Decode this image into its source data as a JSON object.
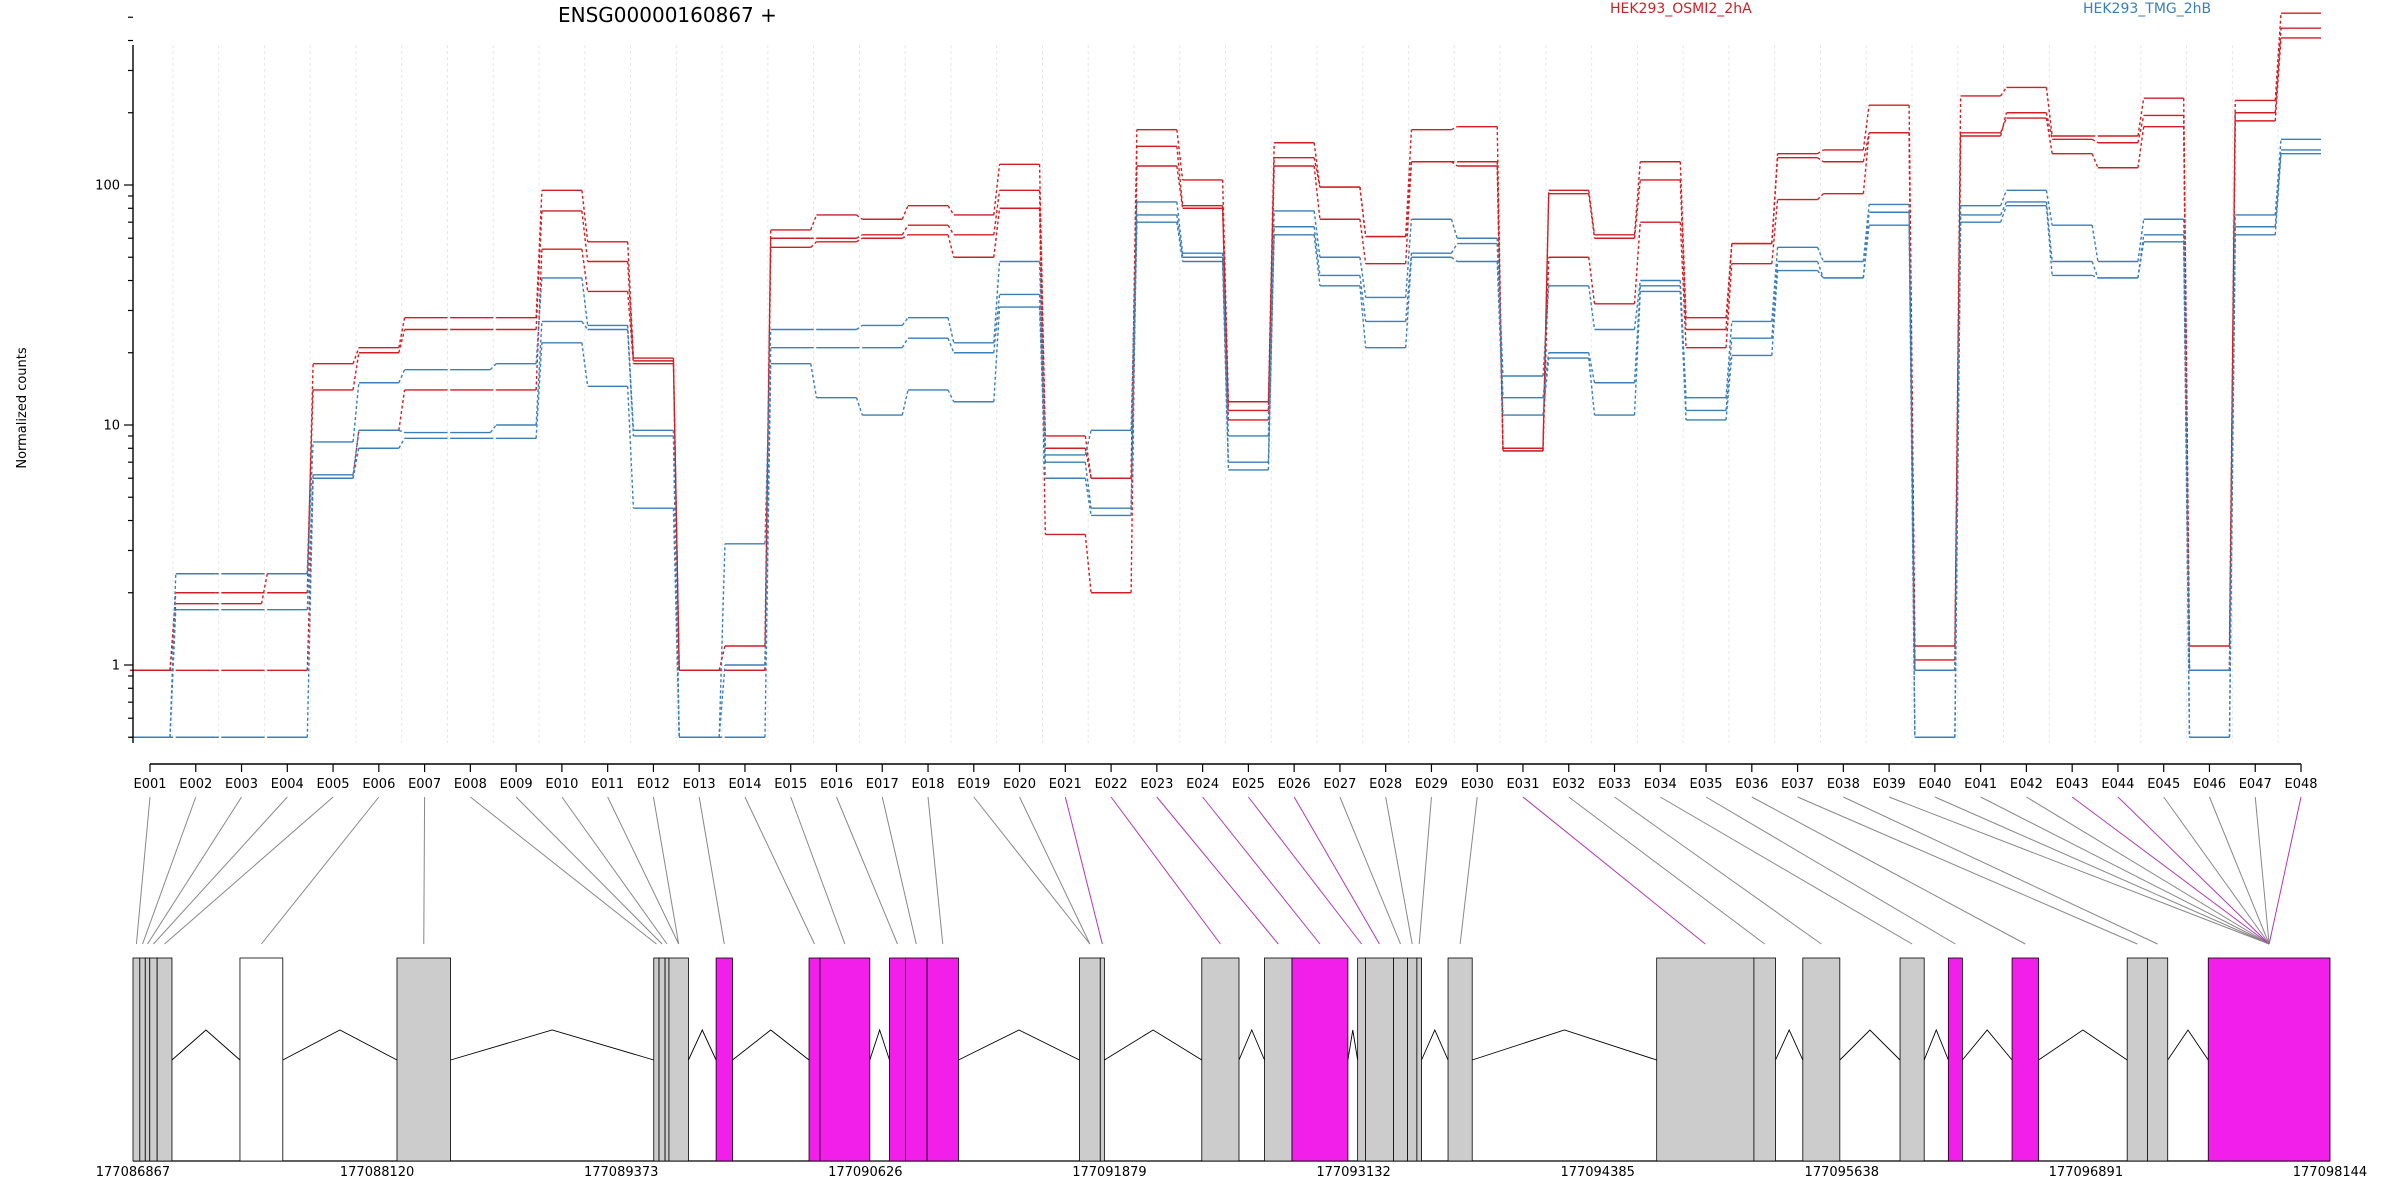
{
  "chart_data": {
    "type": "line",
    "title": "ENSG00000160867 +",
    "ylabel": "Normalized counts",
    "yscale": "log",
    "ylim": [
      0.5,
      600
    ],
    "yticks": [
      1,
      10,
      100
    ],
    "ytick_labels": [
      "1",
      "10",
      "100"
    ],
    "categories": [
      "E001",
      "E002",
      "E003",
      "E004",
      "E005",
      "E006",
      "E007",
      "E008",
      "E009",
      "E010",
      "E011",
      "E012",
      "E013",
      "E014",
      "E015",
      "E016",
      "E017",
      "E018",
      "E019",
      "E020",
      "E021",
      "E022",
      "E023",
      "E024",
      "E025",
      "E026",
      "E027",
      "E028",
      "E029",
      "E030",
      "E031",
      "E032",
      "E033",
      "E034",
      "E035",
      "E036",
      "E037",
      "E038",
      "E039",
      "E040",
      "E041",
      "E042",
      "E043",
      "E044",
      "E045",
      "E046",
      "E047",
      "E048"
    ],
    "legend": [
      {
        "label": "HEK293_OSMI2_2hA",
        "color": "#cf1f24"
      },
      {
        "label": "HEK293_TMG_2hB",
        "color": "#3a7fb7"
      }
    ],
    "series": [
      {
        "group": 0,
        "color": "#cf1f24",
        "values": [
          0.95,
          2.0,
          2.0,
          2.0,
          18,
          21,
          28,
          28,
          28,
          95,
          58,
          19,
          0.95,
          1.2,
          65,
          75,
          72,
          82,
          75,
          122,
          9,
          6,
          170,
          105,
          12.5,
          150,
          98,
          61,
          170,
          175,
          8,
          95,
          62,
          125,
          28,
          57,
          135,
          140,
          215,
          1.2,
          235,
          255,
          160,
          160,
          230,
          1.2,
          225,
          520
        ]
      },
      {
        "group": 0,
        "color": "#cf1f24",
        "values": [
          0.95,
          1.8,
          1.8,
          2.4,
          14,
          20,
          25,
          25,
          25,
          78,
          48,
          18.5,
          0.95,
          0.95,
          60,
          60,
          62,
          68,
          62,
          95,
          8,
          6,
          145,
          82,
          11.5,
          130,
          98,
          61,
          125,
          125,
          7.8,
          92,
          60,
          105,
          25,
          57,
          130,
          125,
          165,
          1.05,
          160,
          200,
          155,
          150,
          195,
          0.95,
          200,
          450
        ]
      },
      {
        "group": 0,
        "color": "#cf1f24",
        "values": [
          0.95,
          0.95,
          0.95,
          0.95,
          6,
          9.5,
          14,
          14,
          14,
          54,
          36,
          18,
          0.95,
          0.95,
          55,
          58,
          60,
          62,
          50,
          80,
          3.5,
          2.0,
          120,
          80,
          10.5,
          120,
          72,
          47,
          125,
          120,
          7.8,
          50,
          32,
          70,
          21,
          47,
          87,
          92,
          165,
          0.95,
          165,
          190,
          135,
          118,
          175,
          0.95,
          185,
          410
        ]
      },
      {
        "group": 1,
        "color": "#3a7fb7",
        "values": [
          0.5,
          2.4,
          2.4,
          2.4,
          8.5,
          15,
          17,
          17,
          18,
          41,
          26,
          9.5,
          0.5,
          3.2,
          25,
          25,
          26,
          28,
          22,
          48,
          7.5,
          9.5,
          85,
          52,
          9,
          78,
          50,
          34,
          72,
          60,
          16,
          38,
          25,
          40,
          13,
          27,
          55,
          48,
          83,
          0.5,
          82,
          95,
          68,
          48,
          72,
          0.5,
          75,
          155
        ]
      },
      {
        "group": 1,
        "color": "#3a7fb7",
        "values": [
          0.5,
          1.7,
          1.7,
          1.7,
          6.2,
          9.5,
          9.3,
          9.3,
          10,
          27,
          25,
          9,
          0.5,
          1.0,
          21,
          21,
          21,
          23,
          20,
          35,
          7,
          4.5,
          75,
          50,
          7,
          67,
          42,
          27,
          52,
          57,
          13,
          20,
          15,
          38,
          11.5,
          23,
          48,
          41,
          77,
          0.95,
          75,
          85,
          48,
          41,
          62,
          0.95,
          67,
          140
        ]
      },
      {
        "group": 1,
        "color": "#3a7fb7",
        "values": [
          0.5,
          0.5,
          0.5,
          0.5,
          6,
          8,
          8.8,
          8.8,
          8.8,
          22,
          14.5,
          4.5,
          0.5,
          0.5,
          18,
          13,
          11,
          14,
          12.5,
          31,
          6,
          4.2,
          70,
          48,
          6.5,
          62,
          38,
          21,
          50,
          48,
          11,
          19,
          11,
          36,
          10.5,
          19.5,
          44,
          41,
          68,
          0.5,
          70,
          82,
          42,
          41,
          58,
          0.5,
          62,
          135
        ]
      }
    ],
    "gene_model": {
      "coordinate_labels": [
        "177086867",
        "177088120",
        "177089373",
        "177090626",
        "177091879",
        "177093132",
        "177094385",
        "177095638",
        "177096891",
        "177098144"
      ],
      "coord_start": 177086867,
      "coord_end": 177098144,
      "exon_ranges": [
        [
          177086867,
          177086902,
          "#cccccc"
        ],
        [
          177086902,
          177086930,
          "#cccccc"
        ],
        [
          177086930,
          177086953,
          "#cccccc"
        ],
        [
          177086953,
          177086991,
          "#cccccc"
        ],
        [
          177086991,
          177087067,
          "#cccccc"
        ],
        [
          177087416,
          177087636,
          "#ffffff"
        ],
        [
          177088222,
          177088497,
          "#cccccc"
        ],
        [
          177089540,
          177089567,
          "#cccccc"
        ],
        [
          177089567,
          177089598,
          "#cccccc"
        ],
        [
          177089598,
          177089618,
          "#cccccc"
        ],
        [
          177089618,
          177089718,
          "#cccccc"
        ],
        [
          177089860,
          177089944,
          "#f21ee9"
        ],
        [
          177090337,
          177090393,
          "#f21ee9"
        ],
        [
          177090393,
          177090649,
          "#f21ee9"
        ],
        [
          177090750,
          177090832,
          "#f21ee9"
        ],
        [
          177090832,
          177090943,
          "#f21ee9"
        ],
        [
          177090943,
          177091104,
          "#f21ee9"
        ],
        [
          177091725,
          177091832,
          "#cccccc"
        ],
        [
          177091832,
          177091853,
          "#cccccc"
        ],
        [
          177092353,
          177092544,
          "#cccccc"
        ],
        [
          177092675,
          177092816,
          "#cccccc"
        ],
        [
          177092816,
          177093103,
          "#f21ee9"
        ],
        [
          177093153,
          177093193,
          "#cccccc"
        ],
        [
          177093193,
          177093337,
          "#cccccc"
        ],
        [
          177093337,
          177093409,
          "#cccccc"
        ],
        [
          177093409,
          177093457,
          "#cccccc"
        ],
        [
          177093457,
          177093481,
          "#cccccc"
        ],
        [
          177093617,
          177093741,
          "#cccccc"
        ],
        [
          177094688,
          177095187,
          "#cccccc"
        ],
        [
          177095187,
          177095298,
          "#cccccc"
        ],
        [
          177095438,
          177095628,
          "#cccccc"
        ],
        [
          177095937,
          177096061,
          "#cccccc"
        ],
        [
          177096185,
          177096257,
          "#f21ee9"
        ],
        [
          177096512,
          177096648,
          "#f21ee9"
        ],
        [
          177097103,
          177097207,
          "#cccccc"
        ],
        [
          177097207,
          177097311,
          "#cccccc"
        ],
        [
          177097519,
          177098144,
          "#f21ee9"
        ]
      ],
      "exon_bin_links": [
        [
          1,
          0,
          "#888888"
        ],
        [
          2,
          1,
          "#888888"
        ],
        [
          3,
          2,
          "#888888"
        ],
        [
          4,
          3,
          "#888888"
        ],
        [
          5,
          4,
          "#888888"
        ],
        [
          6,
          5,
          "#888888"
        ],
        [
          7,
          6,
          "#888888"
        ],
        [
          8,
          7,
          "#888888"
        ],
        [
          9,
          8,
          "#888888"
        ],
        [
          10,
          9,
          "#888888"
        ],
        [
          11,
          10,
          "#888888"
        ],
        [
          12,
          10,
          "#888888"
        ],
        [
          13,
          11,
          "#888888"
        ],
        [
          14,
          12,
          "#888888"
        ],
        [
          15,
          13,
          "#888888"
        ],
        [
          16,
          14,
          "#888888"
        ],
        [
          17,
          15,
          "#888888"
        ],
        [
          18,
          16,
          "#888888"
        ],
        [
          19,
          17,
          "#888888"
        ],
        [
          20,
          17,
          "#888888"
        ],
        [
          21,
          18,
          "#b03bb0"
        ],
        [
          22,
          19,
          "#b03bb0"
        ],
        [
          23,
          20,
          "#b03bb0"
        ],
        [
          24,
          21,
          "#b03bb0"
        ],
        [
          25,
          22,
          "#b03bb0"
        ],
        [
          26,
          23,
          "#b03bb0"
        ],
        [
          27,
          24,
          "#888888"
        ],
        [
          28,
          25,
          "#888888"
        ],
        [
          29,
          26,
          "#888888"
        ],
        [
          30,
          27,
          "#888888"
        ],
        [
          31,
          28,
          "#b03bb0"
        ],
        [
          32,
          29,
          "#888888"
        ],
        [
          33,
          30,
          "#888888"
        ],
        [
          34,
          31,
          "#888888"
        ],
        [
          35,
          32,
          "#888888"
        ],
        [
          36,
          33,
          "#888888"
        ],
        [
          37,
          34,
          "#888888"
        ],
        [
          38,
          35,
          "#888888"
        ],
        [
          39,
          36,
          "#888888"
        ],
        [
          40,
          37,
          "#888888"
        ],
        [
          41,
          38,
          "#888888"
        ],
        [
          42,
          39,
          "#888888"
        ],
        [
          43,
          40,
          "#b03bb0"
        ],
        [
          44,
          41,
          "#b03bb0"
        ],
        [
          45,
          42,
          "#888888"
        ],
        [
          46,
          43,
          "#888888"
        ],
        [
          47,
          44,
          "#888888"
        ],
        [
          48,
          45,
          "#b03bb0"
        ]
      ]
    }
  }
}
